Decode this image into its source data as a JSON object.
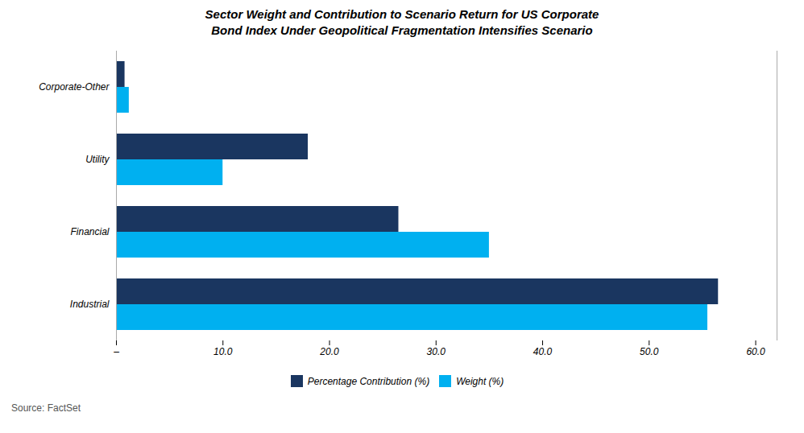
{
  "chart_data": {
    "type": "bar",
    "orientation": "horizontal",
    "title": "Sector Weight and Contribution to Scenario Return for US Corporate\nBond Index Under Geopolitical Fragmentation Intensifies Scenario",
    "categories": [
      "Industrial",
      "Financial",
      "Utility",
      "Corporate-Other"
    ],
    "series": [
      {
        "name": "Percentage Contribution (%)",
        "color": "#1a3660",
        "values": [
          56.5,
          26.5,
          18.0,
          0.8
        ]
      },
      {
        "name": "Weight (%)",
        "color": "#00b0f0",
        "values": [
          55.5,
          35.0,
          10.0,
          1.2
        ]
      }
    ],
    "xlim": [
      0,
      62
    ],
    "xticks": [
      {
        "value": 0,
        "label": "–"
      },
      {
        "value": 10,
        "label": "10.0"
      },
      {
        "value": 20,
        "label": "20.0"
      },
      {
        "value": 30,
        "label": "30.0"
      },
      {
        "value": 40,
        "label": "40.0"
      },
      {
        "value": 50,
        "label": "50.0"
      },
      {
        "value": 60,
        "label": "60.0"
      }
    ],
    "grid": false,
    "legend": "bottom",
    "annotations": [
      "Source: FactSet"
    ]
  }
}
